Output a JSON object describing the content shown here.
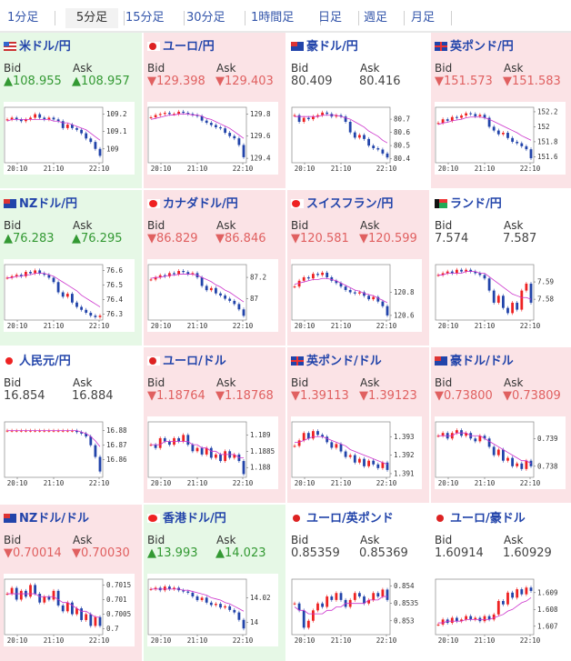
{
  "tabs": [
    {
      "label": "1分足",
      "active": false
    },
    {
      "label": "5分足",
      "active": true
    },
    {
      "label": "15分足",
      "active": false
    },
    {
      "label": "30分足",
      "active": false
    },
    {
      "label": "1時間足",
      "active": false
    },
    {
      "label": "日足",
      "active": false
    },
    {
      "label": "週足",
      "active": false
    },
    {
      "label": "月足",
      "active": false
    }
  ],
  "labels": {
    "bid": "Bid",
    "ask": "Ask"
  },
  "colors": {
    "up_bg": "#e6f8e6",
    "down_bg": "#fbe3e6",
    "up_text": "#339933",
    "down_text": "#e06060",
    "title": "#2244aa",
    "ma_line": "#cc33cc",
    "candle_up": "#ee2222",
    "candle_down": "#2244aa"
  },
  "pairs": [
    {
      "name": "米ドル/円",
      "flag": "us-flag",
      "trend": "up",
      "bid": "▲108.955",
      "ask": "▲108.957",
      "chart": {
        "x_ticks": [
          "20:10",
          "21:10",
          "22:10"
        ],
        "y_ticks": [
          "109.2",
          "109.1",
          "109"
        ],
        "ylim": [
          108.92,
          109.24
        ],
        "path": [
          109.17,
          109.18,
          109.17,
          109.16,
          109.17,
          109.18,
          109.2,
          109.18,
          109.17,
          109.18,
          109.17,
          109.16,
          109.12,
          109.14,
          109.12,
          109.11,
          109.09,
          109.06,
          109.04,
          109.0,
          108.96
        ],
        "ma": [
          109.16,
          109.17,
          109.17,
          109.17,
          109.17,
          109.17,
          109.17,
          109.17,
          109.17,
          109.17,
          109.16,
          109.16,
          109.15,
          109.15,
          109.14,
          109.13,
          109.12,
          109.11,
          109.09,
          109.07,
          109.05
        ]
      }
    },
    {
      "name": "ユーロ/円",
      "flag": "eu-flag",
      "trend": "down",
      "bid": "▼129.398",
      "ask": "▼129.403",
      "chart": {
        "x_ticks": [
          "20:10",
          "21:10",
          "22:10"
        ],
        "y_ticks": [
          "129.8",
          "129.6",
          "129.4"
        ],
        "ylim": [
          129.36,
          129.86
        ],
        "path": [
          129.77,
          129.79,
          129.8,
          129.81,
          129.8,
          129.8,
          129.82,
          129.81,
          129.8,
          129.79,
          129.78,
          129.74,
          129.72,
          129.7,
          129.68,
          129.67,
          129.63,
          129.6,
          129.58,
          129.52,
          129.41
        ],
        "ma": [
          129.75,
          129.76,
          129.77,
          129.78,
          129.79,
          129.79,
          129.8,
          129.8,
          129.8,
          129.79,
          129.79,
          129.78,
          129.76,
          129.75,
          129.73,
          129.71,
          129.69,
          129.67,
          129.64,
          129.61,
          129.58
        ]
      }
    },
    {
      "name": "豪ドル/円",
      "flag": "au-flag",
      "trend": "neutral",
      "bid": "80.409",
      "ask": "80.416",
      "chart": {
        "x_ticks": [
          "20:10",
          "21:10",
          "22:10"
        ],
        "y_ticks": [
          "80.7",
          "80.6",
          "80.5",
          "80.4"
        ],
        "ylim": [
          80.37,
          80.79
        ],
        "path": [
          80.73,
          80.68,
          80.71,
          80.7,
          80.72,
          80.73,
          80.75,
          80.74,
          80.72,
          80.73,
          80.72,
          80.68,
          80.6,
          80.56,
          80.58,
          80.55,
          80.5,
          80.48,
          80.47,
          80.44,
          80.41
        ],
        "ma": [
          80.72,
          80.72,
          80.72,
          80.72,
          80.72,
          80.72,
          80.73,
          80.73,
          80.73,
          80.73,
          80.72,
          80.71,
          80.7,
          80.68,
          80.66,
          80.64,
          80.61,
          80.59,
          80.57,
          80.54,
          80.52
        ]
      }
    },
    {
      "name": "英ポンド/円",
      "flag": "uk-flag",
      "trend": "down",
      "bid": "▼151.573",
      "ask": "▼151.583",
      "chart": {
        "x_ticks": [
          "20:10",
          "21:10",
          "22:10"
        ],
        "y_ticks": [
          "152.2",
          "152",
          "151.8",
          "151.6"
        ],
        "ylim": [
          151.52,
          152.26
        ],
        "path": [
          152.05,
          152.1,
          152.08,
          152.13,
          152.12,
          152.15,
          152.18,
          152.17,
          152.14,
          152.16,
          152.12,
          152.0,
          151.95,
          151.9,
          151.92,
          151.85,
          151.8,
          151.78,
          151.74,
          151.7,
          151.58
        ],
        "ma": [
          152.03,
          152.05,
          152.06,
          152.08,
          152.09,
          152.1,
          152.12,
          152.13,
          152.13,
          152.13,
          152.12,
          152.1,
          152.07,
          152.04,
          152.01,
          151.98,
          151.95,
          151.92,
          151.88,
          151.85,
          151.82
        ]
      }
    },
    {
      "name": "NZドル/円",
      "flag": "nz-flag",
      "trend": "up",
      "bid": "▲76.283",
      "ask": "▲76.295",
      "chart": {
        "x_ticks": [
          "20:10",
          "21:10",
          "22:10"
        ],
        "y_ticks": [
          "76.6",
          "76.5",
          "76.4",
          "76.3"
        ],
        "ylim": [
          76.26,
          76.64
        ],
        "path": [
          76.55,
          76.56,
          76.57,
          76.56,
          76.59,
          76.58,
          76.6,
          76.58,
          76.57,
          76.55,
          76.52,
          76.45,
          76.42,
          76.44,
          76.38,
          76.35,
          76.33,
          76.31,
          76.29,
          76.28,
          76.29
        ],
        "ma": [
          76.55,
          76.55,
          76.56,
          76.56,
          76.57,
          76.57,
          76.58,
          76.58,
          76.58,
          76.57,
          76.56,
          76.54,
          76.52,
          76.5,
          76.48,
          76.46,
          76.43,
          76.41,
          76.39,
          76.37,
          76.35
        ]
      }
    },
    {
      "name": "カナダドル/円",
      "flag": "ca-flag",
      "trend": "down",
      "bid": "▼86.829",
      "ask": "▼86.846",
      "chart": {
        "x_ticks": [
          "20:10",
          "21:10",
          "22:10"
        ],
        "y_ticks": [
          "87.2",
          "87"
        ],
        "ylim": [
          86.8,
          87.32
        ],
        "path": [
          87.18,
          87.2,
          87.22,
          87.21,
          87.24,
          87.23,
          87.26,
          87.25,
          87.23,
          87.24,
          87.2,
          87.12,
          87.08,
          87.1,
          87.05,
          87.03,
          87.0,
          86.98,
          86.95,
          86.9,
          86.84
        ],
        "ma": [
          87.19,
          87.2,
          87.2,
          87.21,
          87.22,
          87.22,
          87.23,
          87.23,
          87.23,
          87.23,
          87.22,
          87.2,
          87.18,
          87.16,
          87.13,
          87.11,
          87.08,
          87.06,
          87.03,
          87.0,
          86.97
        ]
      }
    },
    {
      "name": "スイスフラン/円",
      "flag": "ch-flag",
      "trend": "down",
      "bid": "▼120.581",
      "ask": "▼120.599",
      "chart": {
        "x_ticks": [
          "20:10",
          "21:10",
          "22:10"
        ],
        "y_ticks": [
          "120.8",
          "120.6"
        ],
        "ylim": [
          120.56,
          121.04
        ],
        "path": [
          120.85,
          120.9,
          120.93,
          120.92,
          120.96,
          120.95,
          120.97,
          120.93,
          120.9,
          120.88,
          120.85,
          120.82,
          120.8,
          120.79,
          120.8,
          120.77,
          120.74,
          120.76,
          120.72,
          120.68,
          120.6
        ],
        "ma": [
          120.87,
          120.88,
          120.89,
          120.9,
          120.91,
          120.91,
          120.92,
          120.92,
          120.91,
          120.9,
          120.88,
          120.86,
          120.84,
          120.82,
          120.81,
          120.79,
          120.78,
          120.77,
          120.75,
          120.73,
          120.71
        ]
      }
    },
    {
      "name": "ランド/円",
      "flag": "za-flag",
      "trend": "neutral",
      "bid": "7.574",
      "ask": "7.587",
      "chart": {
        "x_ticks": [
          "20:10",
          "21:10",
          "22:10"
        ],
        "y_ticks": [
          "7.59",
          "7.58"
        ],
        "ylim": [
          7.568,
          7.6
        ],
        "path": [
          7.594,
          7.595,
          7.596,
          7.595,
          7.597,
          7.596,
          7.597,
          7.596,
          7.595,
          7.594,
          7.592,
          7.585,
          7.578,
          7.582,
          7.575,
          7.572,
          7.578,
          7.574,
          7.585,
          7.589,
          7.578
        ],
        "ma": [
          7.594,
          7.594,
          7.595,
          7.595,
          7.595,
          7.595,
          7.596,
          7.596,
          7.596,
          7.595,
          7.595,
          7.593,
          7.591,
          7.589,
          7.587,
          7.585,
          7.583,
          7.582,
          7.581,
          7.581,
          7.58
        ]
      }
    },
    {
      "name": "人民元/円",
      "flag": "cn-flag",
      "trend": "neutral",
      "bid": "16.854",
      "ask": "16.884",
      "chart": {
        "x_ticks": [
          "20:10",
          "21:10",
          "22:10"
        ],
        "y_ticks": [
          "16.88",
          "16.87",
          "16.86"
        ],
        "ylim": [
          16.848,
          16.886
        ],
        "path": [
          16.88,
          16.88,
          16.88,
          16.88,
          16.88,
          16.88,
          16.88,
          16.88,
          16.88,
          16.88,
          16.88,
          16.88,
          16.88,
          16.88,
          16.88,
          16.879,
          16.878,
          16.876,
          16.87,
          16.862,
          16.852
        ],
        "ma": [
          16.88,
          16.88,
          16.88,
          16.88,
          16.88,
          16.88,
          16.88,
          16.88,
          16.88,
          16.88,
          16.88,
          16.88,
          16.88,
          16.88,
          16.88,
          16.88,
          16.879,
          16.878,
          16.876,
          16.873,
          16.869
        ]
      }
    },
    {
      "name": "ユーロ/ドル",
      "flag": "eu-flag",
      "trend": "down",
      "bid": "▼1.18764",
      "ask": "▼1.18768",
      "chart": {
        "x_ticks": [
          "20:10",
          "21:10",
          "22:10"
        ],
        "y_ticks": [
          "1.189",
          "1.1885",
          "1.188"
        ],
        "ylim": [
          1.1877,
          1.1894
        ],
        "path": [
          1.1887,
          1.1886,
          1.1889,
          1.1888,
          1.1887,
          1.1889,
          1.1888,
          1.189,
          1.1887,
          1.1885,
          1.1886,
          1.1884,
          1.1886,
          1.1883,
          1.1884,
          1.1882,
          1.1885,
          1.1883,
          1.1884,
          1.1882,
          1.1878
        ],
        "ma": [
          1.1887,
          1.1887,
          1.1887,
          1.1888,
          1.1888,
          1.1888,
          1.1888,
          1.1888,
          1.1888,
          1.1887,
          1.1887,
          1.1886,
          1.1886,
          1.1885,
          1.1885,
          1.1884,
          1.1884,
          1.1884,
          1.1884,
          1.1883,
          1.1883
        ]
      }
    },
    {
      "name": "英ポンド/ドル",
      "flag": "uk-flag",
      "trend": "down",
      "bid": "▼1.39113",
      "ask": "▼1.39123",
      "chart": {
        "x_ticks": [
          "20:10",
          "21:10",
          "22:10"
        ],
        "y_ticks": [
          "1.393",
          "1.392",
          "1.391"
        ],
        "ylim": [
          1.3908,
          1.3938
        ],
        "path": [
          1.3925,
          1.3928,
          1.3932,
          1.3929,
          1.3933,
          1.3931,
          1.393,
          1.3927,
          1.3924,
          1.3926,
          1.3922,
          1.3919,
          1.392,
          1.3916,
          1.3918,
          1.3914,
          1.3917,
          1.3915,
          1.3913,
          1.3916,
          1.3912
        ],
        "ma": [
          1.3927,
          1.3927,
          1.3928,
          1.3929,
          1.393,
          1.393,
          1.393,
          1.3929,
          1.3928,
          1.3927,
          1.3926,
          1.3925,
          1.3923,
          1.3922,
          1.3921,
          1.392,
          1.3919,
          1.3918,
          1.3917,
          1.3916,
          1.3915
        ]
      }
    },
    {
      "name": "豪ドル/ドル",
      "flag": "au-flag",
      "trend": "down",
      "bid": "▼0.73800",
      "ask": "▼0.73809",
      "chart": {
        "x_ticks": [
          "20:10",
          "21:10",
          "22:10"
        ],
        "y_ticks": [
          "0.739",
          "0.738"
        ],
        "ylim": [
          0.7376,
          0.7396
        ],
        "path": [
          0.7391,
          0.7392,
          0.739,
          0.7392,
          0.7393,
          0.7391,
          0.7392,
          0.739,
          0.7389,
          0.7391,
          0.739,
          0.7387,
          0.7384,
          0.7386,
          0.7382,
          0.7383,
          0.738,
          0.7381,
          0.7379,
          0.7382,
          0.738
        ],
        "ma": [
          0.7391,
          0.7391,
          0.7391,
          0.7391,
          0.7392,
          0.7392,
          0.7392,
          0.7391,
          0.7391,
          0.7391,
          0.739,
          0.7389,
          0.7388,
          0.7387,
          0.7386,
          0.7385,
          0.7384,
          0.7383,
          0.7382,
          0.7382,
          0.7381
        ]
      }
    },
    {
      "name": "NZドル/ドル",
      "flag": "nz-flag",
      "trend": "down",
      "bid": "▼0.70014",
      "ask": "▼0.70030",
      "chart": {
        "x_ticks": [
          "20:10",
          "21:10",
          "22:10"
        ],
        "y_ticks": [
          "0.7015",
          "0.701",
          "0.7005",
          "0.7"
        ],
        "ylim": [
          0.6998,
          0.7017
        ],
        "path": [
          0.7012,
          0.7014,
          0.701,
          0.7013,
          0.7011,
          0.7015,
          0.7012,
          0.7009,
          0.7011,
          0.701,
          0.7013,
          0.7008,
          0.7006,
          0.7009,
          0.7005,
          0.7007,
          0.7003,
          0.7005,
          0.7001,
          0.7004,
          0.7001
        ],
        "ma": [
          0.7012,
          0.7012,
          0.7012,
          0.7012,
          0.7012,
          0.7012,
          0.7012,
          0.7011,
          0.7011,
          0.7011,
          0.7011,
          0.701,
          0.7009,
          0.7009,
          0.7008,
          0.7007,
          0.7006,
          0.7006,
          0.7005,
          0.7004,
          0.7004
        ]
      }
    },
    {
      "name": "香港ドル/円",
      "flag": "hk-flag",
      "trend": "up",
      "bid": "▲13.993",
      "ask": "▲14.023",
      "chart": {
        "x_ticks": [
          "20:10",
          "21:10",
          "22:10"
        ],
        "y_ticks": [
          "14.02",
          "14"
        ],
        "ylim": [
          13.99,
          14.035
        ],
        "path": [
          14.027,
          14.028,
          14.026,
          14.029,
          14.027,
          14.028,
          14.026,
          14.025,
          14.024,
          14.021,
          14.018,
          14.02,
          14.016,
          14.014,
          14.015,
          14.012,
          14.013,
          14.01,
          14.008,
          14.002,
          13.995
        ],
        "ma": [
          14.027,
          14.027,
          14.027,
          14.027,
          14.027,
          14.027,
          14.027,
          14.026,
          14.026,
          14.025,
          14.024,
          14.023,
          14.022,
          14.02,
          14.019,
          14.018,
          14.016,
          14.015,
          14.013,
          14.011,
          14.009
        ]
      }
    },
    {
      "name": "ユーロ/英ポンド",
      "flag": "eu-flag",
      "trend": "neutral",
      "bid": "0.85359",
      "ask": "0.85369",
      "chart": {
        "x_ticks": [
          "20:10",
          "21:10",
          "22:10"
        ],
        "y_ticks": [
          "0.854",
          "0.8535",
          "0.853"
        ],
        "ylim": [
          0.8526,
          0.8542
        ],
        "path": [
          0.8535,
          0.8533,
          0.8528,
          0.853,
          0.8533,
          0.8535,
          0.8534,
          0.8537,
          0.8536,
          0.8538,
          0.8536,
          0.8534,
          0.8536,
          0.8538,
          0.8537,
          0.8535,
          0.8536,
          0.8538,
          0.8537,
          0.8539,
          0.8536
        ],
        "ma": [
          0.8534,
          0.8533,
          0.8533,
          0.8532,
          0.8532,
          0.8532,
          0.8532,
          0.8533,
          0.8533,
          0.8534,
          0.8534,
          0.8535,
          0.8535,
          0.8535,
          0.8535,
          0.8535,
          0.8536,
          0.8536,
          0.8536,
          0.8537,
          0.8537
        ]
      }
    },
    {
      "name": "ユーロ/豪ドル",
      "flag": "eu-flag",
      "trend": "neutral",
      "bid": "1.60914",
      "ask": "1.60929",
      "chart": {
        "x_ticks": [
          "20:10",
          "21:10",
          "22:10"
        ],
        "y_ticks": [
          "1.609",
          "1.608",
          "1.607"
        ],
        "ylim": [
          1.6065,
          1.6098
        ],
        "path": [
          1.6071,
          1.6074,
          1.6072,
          1.6075,
          1.6073,
          1.6074,
          1.6076,
          1.6074,
          1.6075,
          1.6073,
          1.6076,
          1.6074,
          1.6077,
          1.6085,
          1.6083,
          1.609,
          1.6087,
          1.6092,
          1.6089,
          1.6093,
          1.6091
        ],
        "ma": [
          1.6072,
          1.6072,
          1.6073,
          1.6073,
          1.6073,
          1.6073,
          1.6074,
          1.6074,
          1.6074,
          1.6074,
          1.6074,
          1.6074,
          1.6075,
          1.6076,
          1.6077,
          1.6079,
          1.608,
          1.6082,
          1.6084,
          1.6085,
          1.6087
        ]
      }
    }
  ]
}
